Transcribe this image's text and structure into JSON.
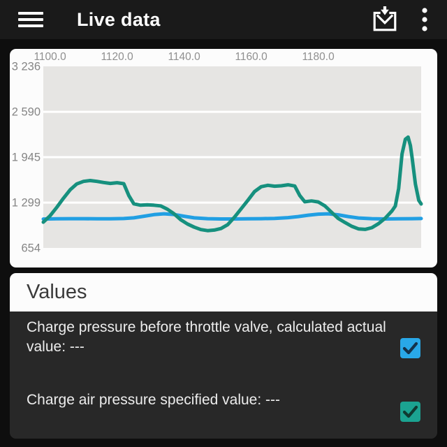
{
  "app_bar": {
    "title": "Live data",
    "icons": {
      "menu": "hamburger-menu",
      "save": "save-log",
      "overflow": "more-vertical"
    }
  },
  "chart": {
    "x_ticks": [
      "1100.0",
      "1120.0",
      "1140.0",
      "1160.0",
      "1180.0"
    ],
    "y_ticks": [
      "3 236",
      "2 590",
      "1 945",
      "1 299",
      "654"
    ],
    "plot_bg": "#E6E5E3",
    "grid_color": "#FFFFFF"
  },
  "chart_data": {
    "type": "line",
    "title": "",
    "xlabel": "",
    "ylabel": "",
    "x_range": [
      1098,
      1210.7
    ],
    "y_range": [
      654,
      3236
    ],
    "x_tick_values": [
      1100,
      1120,
      1140,
      1160,
      1180
    ],
    "y_tick_values": [
      3236,
      2590,
      1945,
      1299,
      654
    ],
    "grid": "horizontal-only",
    "legend": "none",
    "series": [
      {
        "name": "teal-series",
        "color": "#16907E",
        "x": [
          1098,
          1100,
          1102,
          1104,
          1106,
          1108,
          1110,
          1112,
          1114,
          1116,
          1118,
          1120,
          1122,
          1123.5,
          1125,
          1127,
          1129,
          1131,
          1133,
          1135,
          1137,
          1139,
          1141,
          1143,
          1145,
          1147,
          1149,
          1151,
          1153,
          1155,
          1157,
          1159,
          1161,
          1163,
          1165,
          1167,
          1169,
          1171,
          1173,
          1174.5,
          1176,
          1178,
          1180,
          1182,
          1184,
          1186,
          1188,
          1190,
          1192,
          1194,
          1196,
          1198,
          1200,
          1202,
          1203,
          1204,
          1205,
          1206,
          1206.8,
          1207.5,
          1208,
          1209,
          1210,
          1210.7
        ],
        "y": [
          1020,
          1110,
          1230,
          1360,
          1480,
          1565,
          1600,
          1612,
          1600,
          1585,
          1572,
          1582,
          1568,
          1400,
          1282,
          1262,
          1268,
          1262,
          1252,
          1205,
          1140,
          1055,
          995,
          950,
          915,
          900,
          908,
          930,
          985,
          1090,
          1210,
          1330,
          1455,
          1525,
          1545,
          1532,
          1538,
          1552,
          1535,
          1400,
          1310,
          1322,
          1308,
          1252,
          1160,
          1072,
          1015,
          962,
          925,
          918,
          942,
          1000,
          1078,
          1180,
          1250,
          1500,
          1990,
          2200,
          2230,
          2110,
          1940,
          1560,
          1330,
          1280
        ]
      },
      {
        "name": "blue-series",
        "color": "#219FE3",
        "x": [
          1098,
          1102,
          1106,
          1110,
          1114,
          1118,
          1122,
          1125,
          1128,
          1131,
          1134,
          1137,
          1140,
          1143,
          1147,
          1151,
          1155,
          1159,
          1163,
          1167,
          1171,
          1174,
          1177,
          1180,
          1183,
          1186,
          1189,
          1192,
          1196,
          1200,
          1204,
          1208,
          1210.7
        ],
        "y": [
          1065,
          1068,
          1070,
          1070,
          1068,
          1068,
          1072,
          1082,
          1105,
          1128,
          1140,
          1130,
          1105,
          1082,
          1070,
          1066,
          1066,
          1068,
          1070,
          1074,
          1085,
          1100,
          1120,
          1135,
          1140,
          1125,
          1100,
          1080,
          1070,
          1066,
          1068,
          1070,
          1072
        ]
      }
    ]
  },
  "values_section": {
    "header": "Values",
    "items": [
      {
        "label": "Charge pressure before throttle valve, calculated actual value: ---",
        "checked": true,
        "checkbox_color": "#29A8E8",
        "check_color": "#14324A"
      },
      {
        "label": "Charge air pressure specified value: ---",
        "checked": true,
        "checkbox_color": "#1BA391",
        "check_color": "#0F3A31"
      }
    ]
  }
}
